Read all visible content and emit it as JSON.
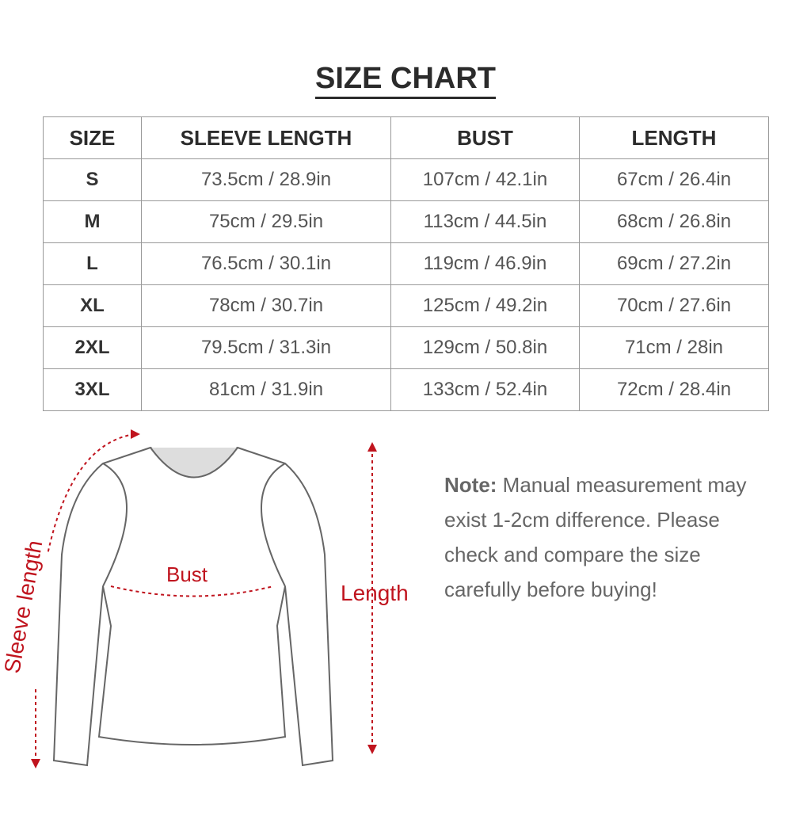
{
  "title": "SIZE CHART",
  "headers": [
    "SIZE",
    "SLEEVE LENGTH",
    "BUST",
    "LENGTH"
  ],
  "rows": [
    [
      "S",
      "73.5cm / 28.9in",
      "107cm / 42.1in",
      "67cm / 26.4in"
    ],
    [
      "M",
      "75cm / 29.5in",
      "113cm / 44.5in",
      "68cm / 26.8in"
    ],
    [
      "L",
      "76.5cm / 30.1in",
      "119cm / 46.9in",
      "69cm / 27.2in"
    ],
    [
      "XL",
      "78cm / 30.7in",
      "125cm / 49.2in",
      "70cm / 27.6in"
    ],
    [
      "2XL",
      "79.5cm / 31.3in",
      "129cm / 50.8in",
      "71cm / 28in"
    ],
    [
      "3XL",
      "81cm / 31.9in",
      "133cm / 52.4in",
      "72cm / 28.4in"
    ]
  ],
  "labels": {
    "bust": "Bust",
    "length": "Length",
    "sleeve": "Sleeve length"
  },
  "note": {
    "label": "Note:",
    "text": " Manual measurement may exist 1-2cm difference. Please check and compare the size carefully before buying!"
  },
  "colors": {
    "accent": "#c0141e"
  }
}
